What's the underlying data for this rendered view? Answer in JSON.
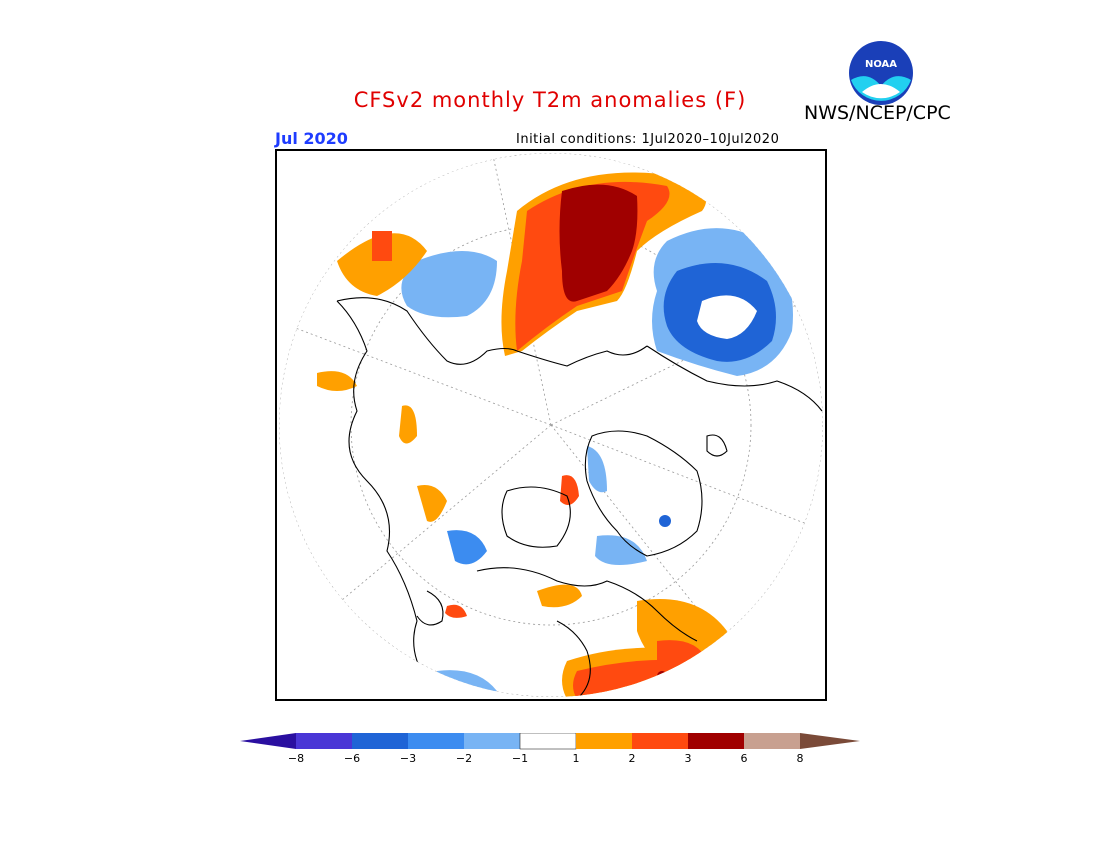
{
  "header": {
    "title": "CFSv2 monthly T2m anomalies (F)",
    "agency": "NWS/NCEP/CPC",
    "logo_text": "NOAA",
    "month": "Jul 2020",
    "initial_conditions": "Initial conditions: 1Jul2020–10Jul2020"
  },
  "colors": {
    "title": "#e00000",
    "month": "#1e3cff",
    "bins": [
      "#2a0fa0",
      "#4a36d6",
      "#1f64d6",
      "#3c8cf0",
      "#78b4f4",
      "#ffffff",
      "#ffa000",
      "#ff4a10",
      "#a00000",
      "#c8a090",
      "#7a4a38"
    ]
  },
  "legend": {
    "tick_labels": [
      "−8",
      "−6",
      "−3",
      "−2",
      "−1",
      "1",
      "2",
      "3",
      "6",
      "8"
    ]
  }
}
